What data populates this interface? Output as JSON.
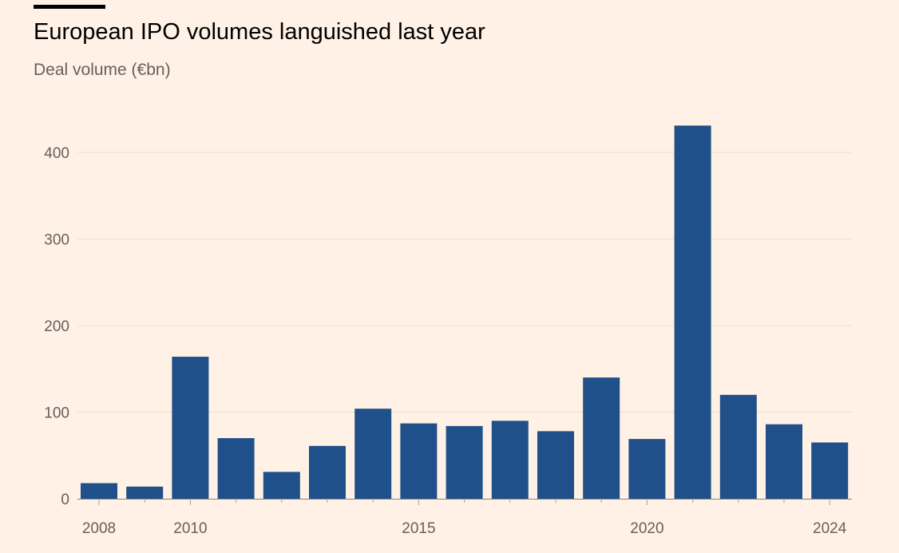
{
  "title": "European IPO volumes languished last year",
  "subtitle": "Deal volume (€bn)",
  "colors": {
    "background": "#fff1e5",
    "bar": "#1f5089",
    "gridline": "#f2dfce",
    "axis_text": "#66605c"
  },
  "chart_data": {
    "type": "bar",
    "title": "European IPO volumes languished last year",
    "ylabel": "Deal volume (€bn)",
    "xlabel": "",
    "categories": [
      "2008",
      "2009",
      "2010",
      "2011",
      "2012",
      "2013",
      "2014",
      "2015",
      "2016",
      "2017",
      "2018",
      "2019",
      "2020",
      "2021",
      "2022",
      "2023",
      "2024"
    ],
    "values": [
      18,
      14,
      164,
      70,
      31,
      61,
      104,
      87,
      84,
      90,
      78,
      140,
      69,
      431,
      120,
      86,
      65
    ],
    "ylim": [
      0,
      440
    ],
    "yticks": [
      0,
      100,
      200,
      300,
      400
    ],
    "xtick_labels": [
      "2008",
      "2010",
      "2015",
      "2020",
      "2024"
    ],
    "grid": true,
    "legend": "none"
  }
}
